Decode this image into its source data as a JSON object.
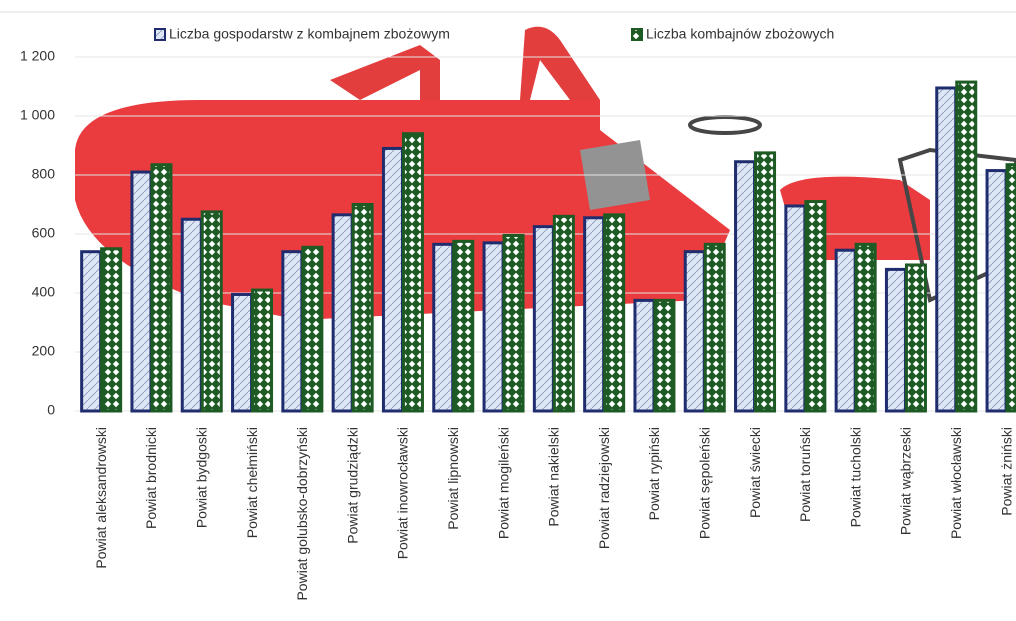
{
  "chart_data": {
    "type": "bar",
    "categories": [
      "Powiat aleksandrowski",
      "Powiat brodnicki",
      "Powiat bydgoski",
      "Powiat chełmiński",
      "Powiat golubsko-dobrzyński",
      "Powiat grudziądzki",
      "Powiat inowrocławski",
      "Powiat lipnowski",
      "Powiat mogileński",
      "Powiat nakielski",
      "Powiat radziejowski",
      "Powiat rypiński",
      "Powiat sępoleński",
      "Powiat świecki",
      "Powiat toruński",
      "Powiat tucholski",
      "Powiat wąbrzeski",
      "Powiat włocławski",
      "Powiat żniński"
    ],
    "series": [
      {
        "name": "Liczba gospodarstw z kombajnem zbożowym",
        "color": "#1f2d6e",
        "values": [
          540,
          810,
          650,
          395,
          540,
          665,
          890,
          565,
          570,
          625,
          655,
          375,
          540,
          845,
          695,
          545,
          480,
          1095,
          815
        ]
      },
      {
        "name": "Liczba kombajnów zbożowych",
        "color": "#1e5b24",
        "values": [
          550,
          835,
          675,
          410,
          555,
          700,
          940,
          575,
          595,
          660,
          665,
          375,
          565,
          875,
          710,
          565,
          495,
          1115,
          835
        ]
      }
    ],
    "ylim": [
      0,
      1200
    ],
    "yticks": [
      0,
      200,
      400,
      600,
      800,
      {
        "value": 1000,
        "label": "1 000"
      },
      {
        "value": 1200,
        "label": "1 200"
      }
    ],
    "grid": true
  }
}
